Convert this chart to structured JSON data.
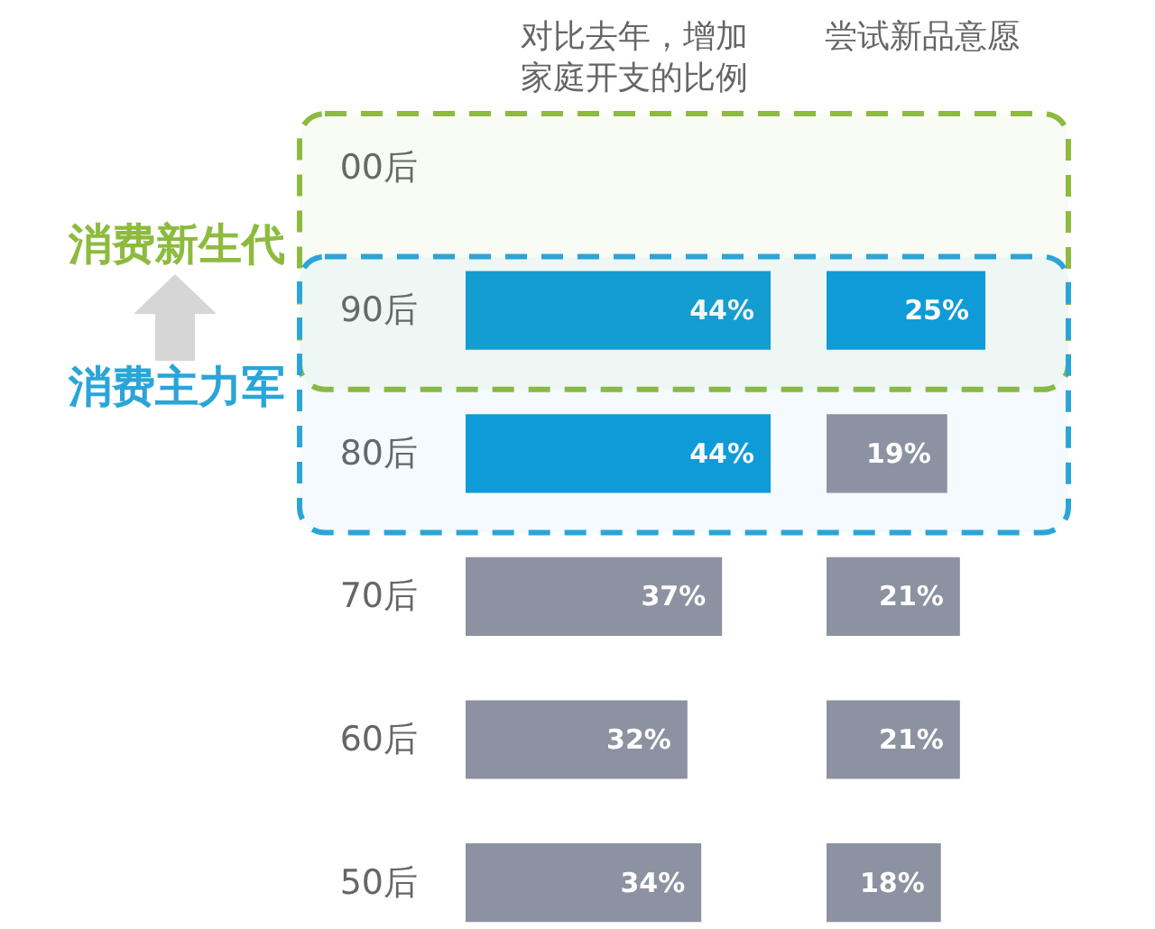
{
  "chart_data": [
    {
      "type": "bar",
      "orientation": "horizontal",
      "title": "对比去年，增加家庭开支的比例",
      "categories": [
        "00后",
        "90后",
        "80后",
        "70后",
        "60后",
        "50后"
      ],
      "values": [
        null,
        44,
        44,
        37,
        32,
        34
      ],
      "colors": [
        null,
        "#0e9bd8",
        "#0e9bd8",
        "#8c92a1",
        "#8c92a1",
        "#8c92a1"
      ],
      "value_labels": [
        null,
        "44%",
        "44%",
        "37%",
        "32%",
        "34%"
      ],
      "tick_labels": "y",
      "bands": [
        {
          "axis": "y",
          "from": "00后",
          "to": "90后",
          "label": "消费新生代",
          "color": "#8dbb3d"
        },
        {
          "axis": "y",
          "from": "90后",
          "to": "80后",
          "label": "消费主力军",
          "color": "#2aa5d8"
        }
      ]
    },
    {
      "type": "bar",
      "orientation": "horizontal",
      "title": "尝试新品意愿",
      "categories": [
        "00后",
        "90后",
        "80后",
        "70后",
        "60后",
        "50后"
      ],
      "values": [
        null,
        25,
        19,
        21,
        21,
        18
      ],
      "colors": [
        null,
        "#0e9bd8",
        "#8c92a1",
        "#8c92a1",
        "#8c92a1",
        "#8c92a1"
      ],
      "value_labels": [
        null,
        "25%",
        "19%",
        "21%",
        "21%",
        "18%"
      ],
      "tick_labels": false
    }
  ]
}
